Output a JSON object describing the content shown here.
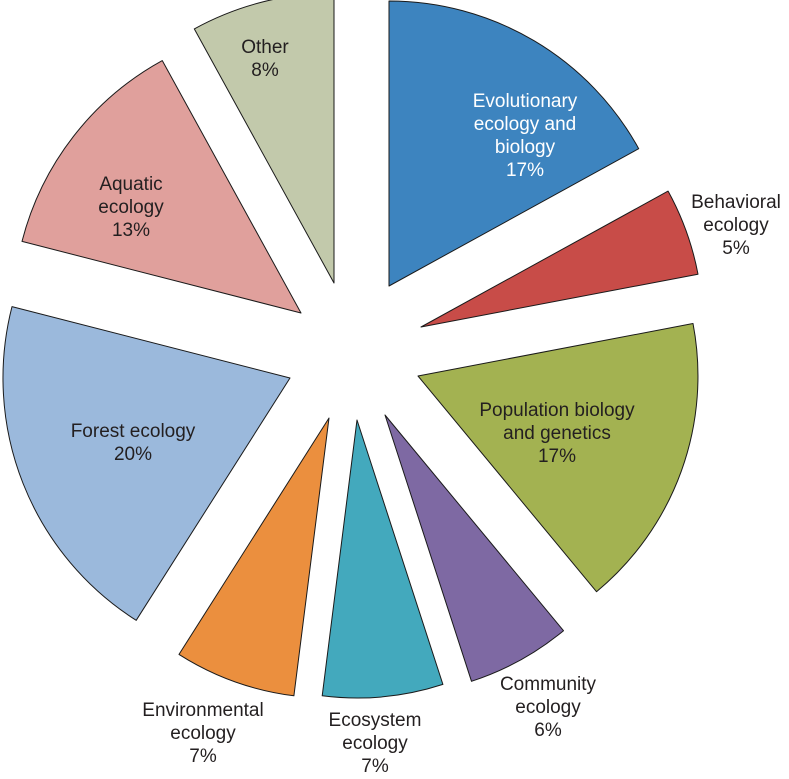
{
  "chart_data": {
    "type": "pie",
    "title": "",
    "start_angle_deg": 0,
    "direction": "clockwise",
    "exploded": true,
    "slices": [
      {
        "label_lines": [
          "Evolutionary",
          "ecology and",
          "biology"
        ],
        "pct_label": "17%",
        "value": 17,
        "color": "#3d84bf",
        "text_color": "#ffffff",
        "label_inside": true
      },
      {
        "label_lines": [
          "Behavioral",
          "ecology"
        ],
        "pct_label": "5%",
        "value": 5,
        "color": "#c84c48",
        "text_color": "#231f20",
        "label_inside": false
      },
      {
        "label_lines": [
          "Population biology",
          "and genetics"
        ],
        "pct_label": "17%",
        "value": 17,
        "color": "#a3b251",
        "text_color": "#231f20",
        "label_inside": true
      },
      {
        "label_lines": [
          "Community",
          "ecology"
        ],
        "pct_label": "6%",
        "value": 6,
        "color": "#7e69a3",
        "text_color": "#231f20",
        "label_inside": false
      },
      {
        "label_lines": [
          "Ecosystem",
          "ecology"
        ],
        "pct_label": "7%",
        "value": 7,
        "color": "#43a9bd",
        "text_color": "#231f20",
        "label_inside": false
      },
      {
        "label_lines": [
          "Environmental",
          "ecology"
        ],
        "pct_label": "7%",
        "value": 7,
        "color": "#eb8f3e",
        "text_color": "#231f20",
        "label_inside": false
      },
      {
        "label_lines": [
          "Forest ecology"
        ],
        "pct_label": "20%",
        "value": 20,
        "color": "#9bb9dc",
        "text_color": "#231f20",
        "label_inside": true
      },
      {
        "label_lines": [
          "Aquatic",
          "ecology"
        ],
        "pct_label": "13%",
        "value": 13,
        "color": "#e0a09c",
        "text_color": "#231f20",
        "label_inside": true
      },
      {
        "label_lines": [
          "Other"
        ],
        "pct_label": "8%",
        "value": 8,
        "color": "#c2c9ab",
        "text_color": "#231f20",
        "label_inside": true
      }
    ]
  }
}
